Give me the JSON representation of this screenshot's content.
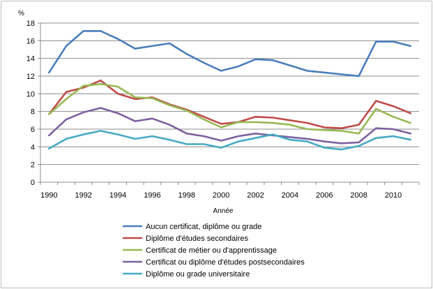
{
  "chart_data": {
    "type": "line",
    "title": "",
    "xlabel": "Année",
    "ylabel": "%",
    "ylim": [
      0,
      18
    ],
    "yticks": [
      0,
      2,
      4,
      6,
      8,
      10,
      12,
      14,
      16,
      18
    ],
    "xlim": [
      1990,
      2011
    ],
    "xticks": [
      1990,
      1992,
      1994,
      1996,
      1998,
      2000,
      2002,
      2004,
      2006,
      2008,
      2010
    ],
    "grid": "horizontal",
    "legend_position": "bottom",
    "x": [
      1990,
      1991,
      1992,
      1993,
      1994,
      1995,
      1996,
      1997,
      1998,
      1999,
      2000,
      2001,
      2002,
      2003,
      2004,
      2005,
      2006,
      2007,
      2008,
      2009,
      2010,
      2011
    ],
    "series": [
      {
        "name": "Aucun certificat, diplôme ou grade",
        "color": "#4a7ebb",
        "values": [
          12.4,
          15.4,
          17.1,
          17.1,
          16.2,
          15.1,
          15.4,
          15.7,
          14.5,
          13.5,
          12.6,
          13.1,
          13.9,
          13.8,
          13.2,
          12.6,
          12.4,
          12.2,
          12.0,
          15.9,
          15.9,
          15.4
        ]
      },
      {
        "name": "Diplôme d'études secondaires",
        "color": "#be4b48",
        "values": [
          7.7,
          10.2,
          10.7,
          11.5,
          10.0,
          9.4,
          9.6,
          8.8,
          8.2,
          7.4,
          6.6,
          6.8,
          7.4,
          7.3,
          7.0,
          6.7,
          6.2,
          6.1,
          6.5,
          9.2,
          8.6,
          7.8
        ]
      },
      {
        "name": "Certificat de métier ou d'apprentissage",
        "color": "#98b954",
        "values": [
          7.7,
          9.4,
          10.9,
          11.1,
          10.8,
          9.6,
          9.5,
          8.7,
          8.1,
          7.1,
          6.2,
          6.8,
          6.8,
          6.7,
          6.5,
          6.0,
          5.9,
          5.8,
          5.5,
          8.3,
          7.4,
          6.7
        ]
      },
      {
        "name": "Certificat ou diplôme d'études postsecondaires",
        "color": "#7d60a0",
        "values": [
          5.3,
          7.1,
          7.9,
          8.4,
          7.8,
          6.9,
          7.2,
          6.5,
          5.5,
          5.2,
          4.7,
          5.2,
          5.5,
          5.3,
          5.1,
          4.9,
          4.6,
          4.4,
          4.5,
          6.1,
          6.0,
          5.5
        ]
      },
      {
        "name": "Diplôme ou grade universitaire",
        "color": "#46aac5",
        "values": [
          3.8,
          4.9,
          5.4,
          5.8,
          5.4,
          4.9,
          5.2,
          4.8,
          4.3,
          4.3,
          3.9,
          4.6,
          5.0,
          5.4,
          4.8,
          4.6,
          3.9,
          3.7,
          4.1,
          5.0,
          5.2,
          4.8
        ]
      }
    ]
  }
}
